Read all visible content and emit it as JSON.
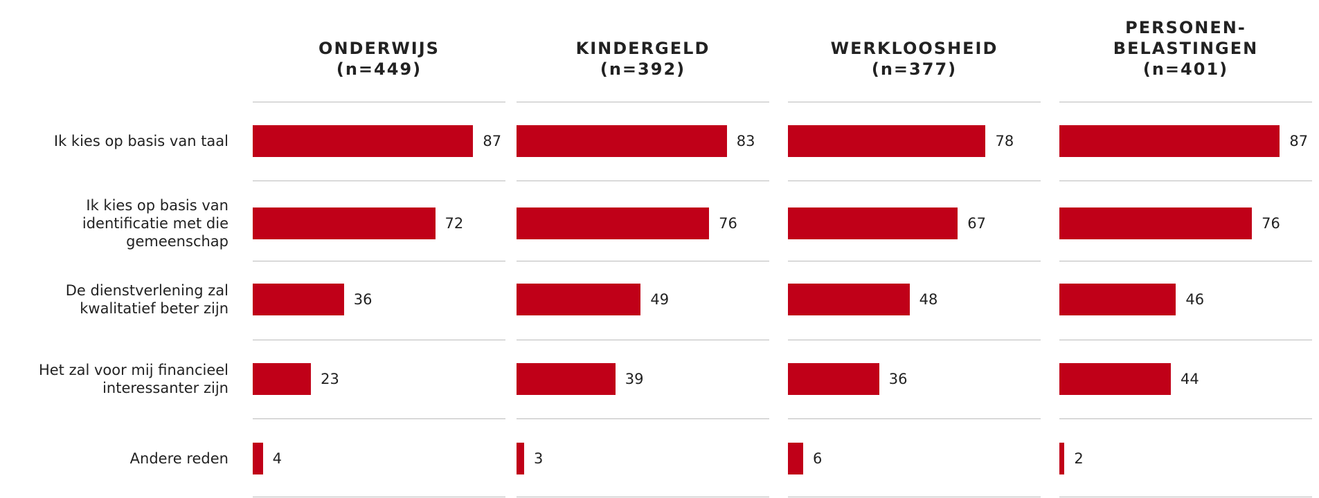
{
  "chart_data": {
    "type": "bar",
    "orientation": "horizontal",
    "categories": [
      "Ik kies op basis van taal",
      "Ik kies op basis van identificatie met die gemeenschap",
      "De dienstverlening zal kwalitatief beter zijn",
      "Het zal voor mij financieel interessanter zijn",
      "Andere reden"
    ],
    "series": [
      {
        "name": "ONDERWIJS\n(n=449)",
        "color": "#c00018",
        "values": [
          87,
          72,
          36,
          23,
          4
        ]
      },
      {
        "name": "KINDERGELD\n(n=392)",
        "color": "#c00018",
        "values": [
          83,
          76,
          49,
          39,
          3
        ]
      },
      {
        "name": "WERKLOOSHEID\n(n=377)",
        "color": "#c00018",
        "values": [
          78,
          67,
          48,
          36,
          6
        ]
      },
      {
        "name": "PERSONEN-\nBELASTINGEN\n(n=401)",
        "color": "#c00018",
        "values": [
          87,
          76,
          46,
          44,
          2
        ]
      }
    ]
  }
}
